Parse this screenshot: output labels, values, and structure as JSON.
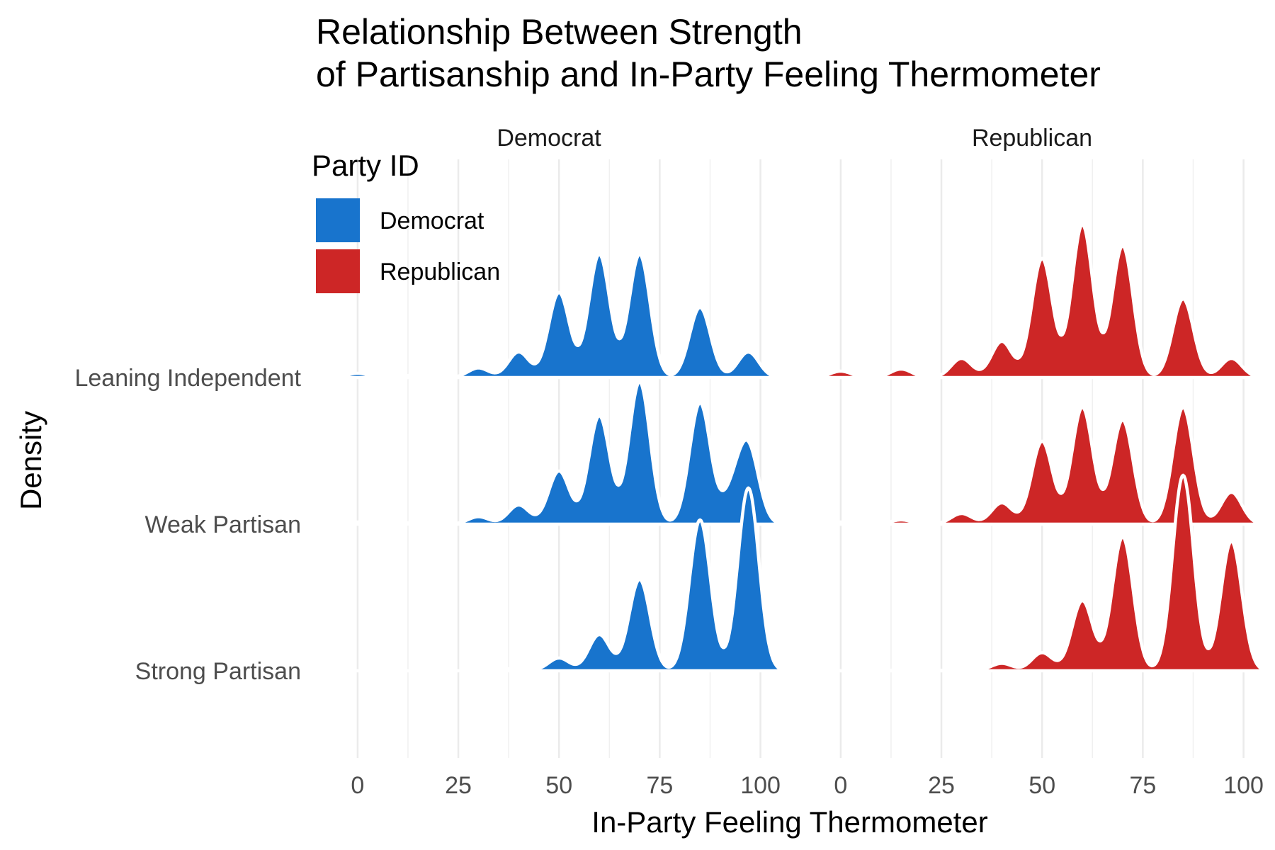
{
  "chart_data": {
    "type": "ridgeline-density",
    "title": "Relationship Between Strength",
    "subtitle": "of Partisanship and In-Party Feeling Thermometer",
    "xlabel": "In-Party Feeling Thermometer",
    "ylabel": "Density",
    "xlim": [
      -10,
      105
    ],
    "x_ticks": [
      0,
      25,
      50,
      75,
      100
    ],
    "y_categories": [
      "Leaning Independent",
      "Weak Partisan",
      "Strong Partisan"
    ],
    "grid": true,
    "legend": {
      "title": "Party ID",
      "placement": "top-left",
      "entries": [
        {
          "label": "Democrat",
          "color": "#1874CD"
        },
        {
          "label": "Republican",
          "color": "#CD2626"
        }
      ]
    },
    "facets": [
      {
        "name": "Democrat",
        "color": "#1874CD",
        "series": [
          {
            "category": "Leaning Independent",
            "peaks": [
              [
                0,
                0.02
              ],
              [
                15,
                0.015
              ],
              [
                30,
                0.045
              ],
              [
                40,
                0.12
              ],
              [
                50,
                0.4
              ],
              [
                60,
                0.58
              ],
              [
                70,
                0.58
              ],
              [
                85,
                0.33
              ],
              [
                97,
                0.12
              ]
            ]
          },
          {
            "category": "Weak Partisan",
            "peaks": [
              [
                0,
                0.01
              ],
              [
                15,
                0.01
              ],
              [
                30,
                0.035
              ],
              [
                40,
                0.09
              ],
              [
                50,
                0.25
              ],
              [
                60,
                0.51
              ],
              [
                70,
                0.67
              ],
              [
                85,
                0.57
              ],
              [
                93,
                0.13
              ],
              [
                97,
                0.35
              ]
            ]
          },
          {
            "category": "Strong Partisan",
            "peaks": [
              [
                40,
                0.015
              ],
              [
                50,
                0.06
              ],
              [
                60,
                0.17
              ],
              [
                70,
                0.43
              ],
              [
                85,
                0.71
              ],
              [
                97,
                0.86
              ]
            ]
          }
        ]
      },
      {
        "name": "Republican",
        "color": "#CD2626",
        "series": [
          {
            "category": "Leaning Independent",
            "peaks": [
              [
                0,
                0.03
              ],
              [
                15,
                0.04
              ],
              [
                30,
                0.09
              ],
              [
                40,
                0.17
              ],
              [
                50,
                0.56
              ],
              [
                60,
                0.72
              ],
              [
                70,
                0.62
              ],
              [
                85,
                0.37
              ],
              [
                97,
                0.09
              ]
            ]
          },
          {
            "category": "Weak Partisan",
            "peaks": [
              [
                0,
                0.01
              ],
              [
                15,
                0.02
              ],
              [
                30,
                0.05
              ],
              [
                40,
                0.1
              ],
              [
                50,
                0.39
              ],
              [
                60,
                0.55
              ],
              [
                70,
                0.49
              ],
              [
                85,
                0.55
              ],
              [
                97,
                0.15
              ]
            ]
          },
          {
            "category": "Strong Partisan",
            "peaks": [
              [
                15,
                0.005
              ],
              [
                30,
                0.015
              ],
              [
                40,
                0.035
              ],
              [
                50,
                0.085
              ],
              [
                60,
                0.33
              ],
              [
                70,
                0.63
              ],
              [
                85,
                0.92
              ],
              [
                97,
                0.61
              ]
            ]
          }
        ]
      }
    ]
  }
}
